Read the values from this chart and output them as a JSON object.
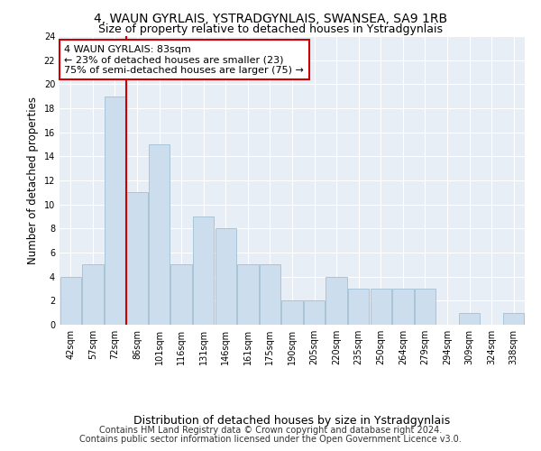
{
  "title": "4, WAUN GYRLAIS, YSTRADGYNLAIS, SWANSEA, SA9 1RB",
  "subtitle": "Size of property relative to detached houses in Ystradgynlais",
  "xlabel": "Distribution of detached houses by size in Ystradgynlais",
  "ylabel": "Number of detached properties",
  "categories": [
    "42sqm",
    "57sqm",
    "72sqm",
    "86sqm",
    "101sqm",
    "116sqm",
    "131sqm",
    "146sqm",
    "161sqm",
    "175sqm",
    "190sqm",
    "205sqm",
    "220sqm",
    "235sqm",
    "250sqm",
    "264sqm",
    "279sqm",
    "294sqm",
    "309sqm",
    "324sqm",
    "338sqm"
  ],
  "values": [
    4,
    5,
    19,
    11,
    15,
    5,
    9,
    8,
    5,
    5,
    2,
    2,
    4,
    3,
    3,
    3,
    3,
    0,
    1,
    0,
    1
  ],
  "bar_color": "#ccdded",
  "bar_edge_color": "#a8c4d8",
  "vline_x_index": 2.5,
  "vline_color": "#cc0000",
  "annotation_text": "4 WAUN GYRLAIS: 83sqm\n← 23% of detached houses are smaller (23)\n75% of semi-detached houses are larger (75) →",
  "annotation_box_facecolor": "#ffffff",
  "annotation_box_edgecolor": "#cc0000",
  "ylim": [
    0,
    24
  ],
  "yticks": [
    0,
    2,
    4,
    6,
    8,
    10,
    12,
    14,
    16,
    18,
    20,
    22,
    24
  ],
  "bg_color": "#ffffff",
  "plot_bg_color": "#e8eef5",
  "grid_color": "#ffffff",
  "title_fontsize": 10,
  "subtitle_fontsize": 9,
  "ylabel_fontsize": 8.5,
  "xlabel_fontsize": 9,
  "tick_fontsize": 7,
  "annotation_fontsize": 8,
  "footer_fontsize": 7,
  "footer_line1": "Contains HM Land Registry data © Crown copyright and database right 2024.",
  "footer_line2": "Contains public sector information licensed under the Open Government Licence v3.0."
}
